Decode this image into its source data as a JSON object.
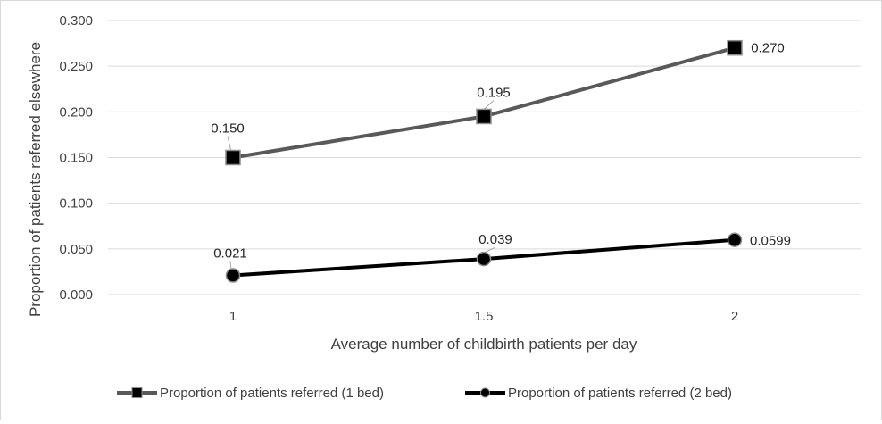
{
  "chart_data": {
    "type": "line",
    "xlabel": "Average number of childbirth patients per day",
    "ylabel": "Proportion of patients referred elsewhere",
    "categories": [
      "1",
      "1.5",
      "2"
    ],
    "ylim": [
      0,
      0.3
    ],
    "yticks": [
      "0.000",
      "0.050",
      "0.100",
      "0.150",
      "0.200",
      "0.250",
      "0.300"
    ],
    "grid": "horizontal",
    "legend_position": "bottom",
    "series": [
      {
        "name": "Proportion of patients referred (1 bed)",
        "values": [
          0.15,
          0.195,
          0.27
        ],
        "labels": [
          "0.150",
          "0.195",
          "0.270"
        ],
        "color": "#595959",
        "marker": "square"
      },
      {
        "name": "Proportion of patients referred (2 bed)",
        "values": [
          0.021,
          0.039,
          0.0599
        ],
        "labels": [
          "0.021",
          "0.039",
          "0.0599"
        ],
        "color": "#000000",
        "marker": "circle"
      }
    ]
  }
}
